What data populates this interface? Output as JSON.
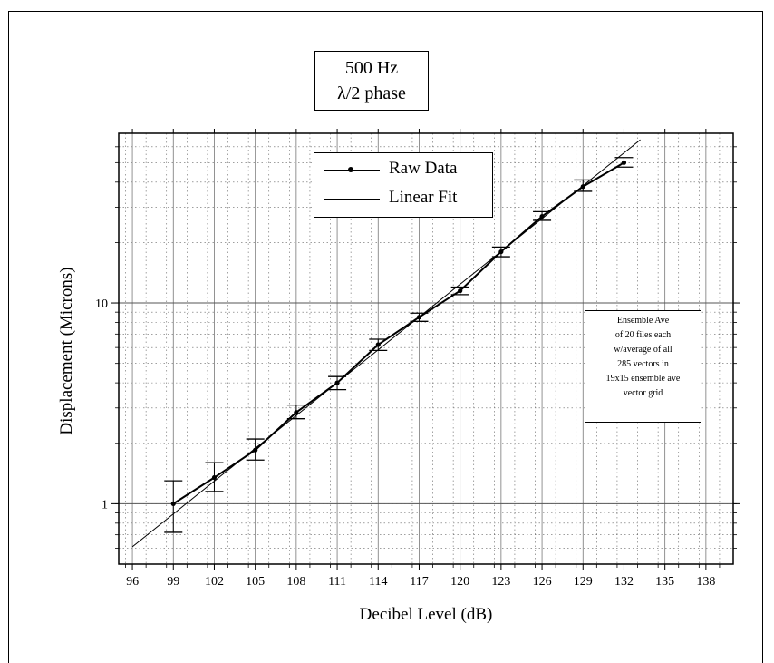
{
  "chart_data": {
    "type": "line",
    "title": "500 Hz",
    "subtitle": "λ/2 phase",
    "xlabel": "Decibel Level (dB)",
    "ylabel": "Displacement (Microns)",
    "xlim": [
      95,
      140
    ],
    "ylim": [
      0.5,
      70
    ],
    "xscale": "linear",
    "yscale": "log",
    "x_ticks": [
      96,
      99,
      102,
      105,
      108,
      111,
      114,
      117,
      120,
      123,
      126,
      129,
      132,
      135,
      138
    ],
    "x_tick_labels": [
      "96",
      "99",
      "102",
      "105",
      "108",
      "111",
      "114",
      "117",
      "120",
      "123",
      "126",
      "129",
      "132",
      "135",
      "138"
    ],
    "y_tick_labels": [
      {
        "value": 1,
        "label": "1"
      },
      {
        "value": 10,
        "label": "10"
      }
    ],
    "grid": true,
    "legend_position": "top-center",
    "series": [
      {
        "name": "Raw Data",
        "style": "line-with-markers",
        "x": [
          99,
          102,
          105,
          108,
          111,
          114,
          117,
          120,
          123,
          126,
          129,
          132
        ],
        "y": [
          1.0,
          1.35,
          1.85,
          2.85,
          4.0,
          6.2,
          8.5,
          11.5,
          18.0,
          27.0,
          38.0,
          50.0
        ],
        "error_low": [
          0.72,
          1.15,
          1.65,
          2.65,
          3.7,
          5.8,
          8.1,
          11.0,
          17.0,
          25.8,
          36.0,
          47.5
        ],
        "error_high": [
          1.3,
          1.6,
          2.1,
          3.1,
          4.3,
          6.6,
          8.9,
          12.0,
          19.0,
          28.5,
          41.0,
          53.0
        ]
      },
      {
        "name": "Linear Fit",
        "style": "line",
        "x": [
          96.0,
          133.2
        ],
        "y": [
          0.61,
          65.0
        ]
      }
    ],
    "annotation": [
      "Ensemble Ave",
      "of 20 files each",
      "w/average of all",
      "285 vectors in",
      "19x15 ensemble ave",
      "vector grid"
    ]
  }
}
